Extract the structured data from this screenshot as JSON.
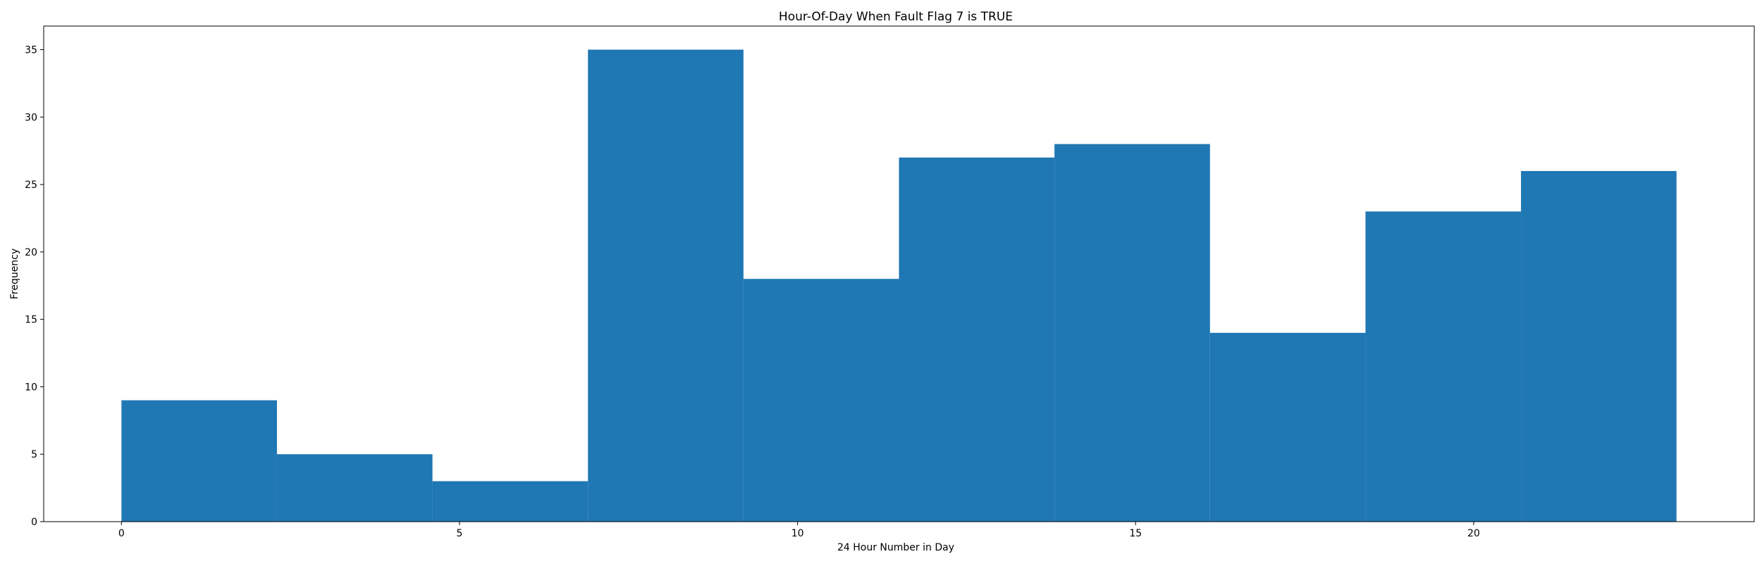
{
  "chart_data": {
    "type": "bar",
    "title": "Hour-Of-Day When Fault Flag 7 is TRUE",
    "xlabel": "24 Hour Number in Day",
    "ylabel": "Frequency",
    "bin_edges": [
      0,
      2.3,
      4.6,
      6.9,
      9.2,
      11.5,
      13.8,
      16.1,
      18.4,
      20.7,
      23
    ],
    "values": [
      9,
      5,
      3,
      35,
      18,
      27,
      28,
      14,
      23,
      26
    ],
    "xlim": [
      -1.15,
      24.15
    ],
    "ylim": [
      0,
      36.75
    ],
    "xticks": [
      0,
      5,
      10,
      15,
      20
    ],
    "yticks": [
      0,
      5,
      10,
      15,
      20,
      25,
      30,
      35
    ],
    "bar_color": "#1f77b4",
    "grid": false,
    "legend": false
  }
}
